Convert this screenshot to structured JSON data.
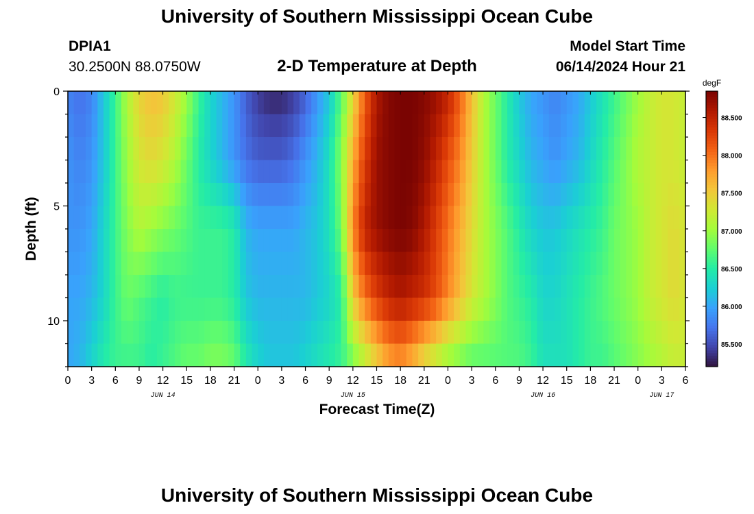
{
  "page": {
    "title": "University of Southern Mississippi Ocean Cube",
    "footer_title": "University of Southern Mississippi Ocean Cube",
    "station_id": "DPIA1",
    "station_coords": "30.2500N  88.0750W",
    "model_label": "Model Start Time",
    "model_time": "06/14/2024 Hour 21"
  },
  "chart_data": {
    "type": "heatmap",
    "title": "2-D Temperature at Depth",
    "xlabel": "Forecast Time(Z)",
    "ylabel": "Depth (ft)",
    "x_tick_labels": [
      "0",
      "3",
      "6",
      "9",
      "12",
      "15",
      "18",
      "21",
      "0",
      "3",
      "6",
      "9",
      "12",
      "15",
      "18",
      "21",
      "0",
      "3",
      "6",
      "9",
      "12",
      "15",
      "18",
      "21",
      "0",
      "3",
      "6"
    ],
    "x_hour_start": 0,
    "x_hour_end": 78,
    "date_labels": [
      {
        "label": "JUN 14",
        "hour": 12
      },
      {
        "label": "JUN 15",
        "hour": 36
      },
      {
        "label": "JUN 16",
        "hour": 60
      },
      {
        "label": "JUN 17",
        "hour": 75
      }
    ],
    "y_ticks": [
      0,
      5,
      10
    ],
    "y_tick_labels": [
      "0",
      "5",
      "10"
    ],
    "ylim": [
      0,
      12
    ],
    "y_inverted": true,
    "colorbar": {
      "unit": "degF",
      "ticks": [
        85.5,
        86.0,
        86.5,
        87.0,
        87.5,
        88.0,
        88.5
      ],
      "tick_labels": [
        "85.500",
        "86.000",
        "86.500",
        "87.000",
        "87.500",
        "88.000",
        "88.500"
      ],
      "range": [
        85.2,
        88.85
      ],
      "colormap": [
        "#30123b",
        "#4145ab",
        "#4675ed",
        "#39a2fc",
        "#1bcfd4",
        "#24eca6",
        "#61fc6c",
        "#a4fc3b",
        "#d1e834",
        "#f3c63a",
        "#fe9b2d",
        "#f36315",
        "#d93806",
        "#b11901",
        "#7a0402"
      ]
    },
    "time_hours": [
      0,
      1.5,
      3,
      4.5,
      6,
      7.5,
      9,
      10.5,
      12,
      13.5,
      15,
      16.5,
      18,
      19.5,
      21,
      22.5,
      24,
      25.5,
      27,
      28.5,
      30,
      31.5,
      33,
      34.5,
      36,
      37.5,
      39,
      40.5,
      42,
      43.5,
      45,
      46.5,
      48,
      49.5,
      51,
      52.5,
      54,
      55.5,
      57,
      58.5,
      60,
      61.5,
      63,
      64.5,
      66,
      67.5,
      69,
      70.5,
      72,
      73.5,
      75,
      76.5,
      78
    ],
    "depth_levels_ft": [
      0,
      3,
      6,
      9,
      12
    ],
    "values": [
      [
        85.8,
        85.7,
        85.8,
        86.2,
        86.6,
        87.1,
        87.45,
        87.6,
        87.55,
        87.3,
        87.0,
        86.6,
        86.3,
        86.1,
        85.9,
        85.6,
        85.4,
        85.3,
        85.3,
        85.4,
        85.6,
        85.9,
        86.2,
        86.7,
        87.4,
        88.1,
        88.6,
        88.8,
        88.85,
        88.85,
        88.8,
        88.7,
        88.5,
        88.1,
        87.6,
        87.1,
        86.8,
        86.5,
        86.2,
        86.0,
        85.9,
        85.8,
        85.9,
        86.0,
        86.2,
        86.4,
        86.6,
        86.8,
        87.0,
        87.2,
        87.3,
        87.3,
        87.2
      ],
      [
        85.9,
        85.8,
        85.9,
        86.2,
        86.6,
        87.0,
        87.3,
        87.4,
        87.3,
        87.1,
        86.8,
        86.5,
        86.3,
        86.1,
        85.9,
        85.7,
        85.6,
        85.6,
        85.6,
        85.7,
        85.9,
        86.1,
        86.4,
        86.9,
        87.7,
        88.3,
        88.7,
        88.8,
        88.85,
        88.85,
        88.75,
        88.5,
        88.2,
        87.9,
        87.5,
        87.1,
        86.8,
        86.5,
        86.3,
        86.1,
        86.0,
        85.9,
        86.0,
        86.1,
        86.3,
        86.5,
        86.7,
        86.9,
        87.1,
        87.2,
        87.3,
        87.3,
        87.2
      ],
      [
        85.9,
        85.9,
        86.0,
        86.3,
        86.6,
        86.9,
        87.1,
        87.0,
        86.9,
        86.8,
        86.7,
        86.6,
        86.6,
        86.6,
        86.5,
        86.1,
        86.0,
        86.0,
        86.0,
        86.0,
        86.1,
        86.2,
        86.4,
        86.8,
        87.9,
        88.5,
        88.7,
        88.8,
        88.85,
        88.8,
        88.6,
        88.3,
        88.0,
        87.7,
        87.4,
        87.1,
        86.9,
        86.7,
        86.5,
        86.3,
        86.2,
        86.2,
        86.3,
        86.4,
        86.5,
        86.6,
        86.8,
        86.9,
        87.0,
        87.2,
        87.3,
        87.4,
        87.3
      ],
      [
        86.0,
        86.0,
        86.1,
        86.3,
        86.6,
        86.8,
        86.7,
        86.6,
        86.5,
        86.6,
        86.6,
        86.6,
        86.6,
        86.6,
        86.5,
        86.2,
        86.1,
        86.1,
        86.1,
        86.1,
        86.1,
        86.2,
        86.3,
        86.5,
        87.5,
        88.0,
        88.3,
        88.5,
        88.6,
        88.5,
        88.4,
        88.2,
        87.9,
        87.6,
        87.3,
        87.1,
        86.9,
        86.7,
        86.6,
        86.5,
        86.3,
        86.3,
        86.4,
        86.5,
        86.6,
        86.7,
        86.8,
        86.9,
        87.0,
        87.2,
        87.3,
        87.4,
        87.3
      ],
      [
        86.0,
        86.1,
        86.3,
        86.5,
        86.6,
        86.6,
        86.6,
        86.5,
        86.6,
        86.7,
        86.8,
        86.8,
        86.9,
        86.9,
        86.8,
        86.5,
        86.3,
        86.2,
        86.2,
        86.2,
        86.3,
        86.4,
        86.5,
        86.6,
        86.8,
        87.1,
        87.4,
        87.7,
        87.8,
        87.6,
        87.3,
        87.1,
        86.9,
        86.8,
        86.7,
        86.7,
        86.7,
        86.7,
        86.7,
        86.6,
        86.4,
        86.4,
        86.4,
        86.5,
        86.6,
        86.6,
        86.7,
        86.8,
        86.9,
        87.0,
        87.1,
        87.2,
        87.2
      ]
    ]
  }
}
